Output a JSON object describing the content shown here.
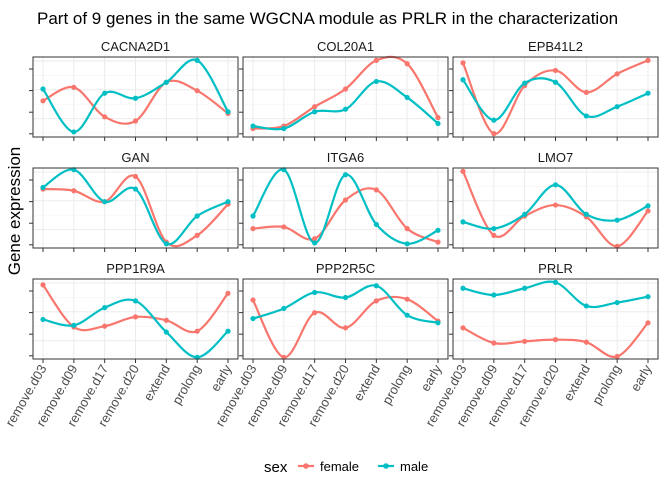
{
  "chart_data": {
    "type": "line",
    "title": "Part of 9 genes in the same WGCNA module as PRLR in the characterization",
    "xlabel": "",
    "ylabel": "Gene expression",
    "categories": [
      "remove.d03",
      "remove.d09",
      "remove.d17",
      "remove.d20",
      "extend",
      "prolong",
      "early"
    ],
    "legend": {
      "title": "sex",
      "position": "bottom"
    },
    "grid": true,
    "y_tick_labels": false,
    "series_colors": {
      "female": "#F8766D",
      "male": "#00BFC4"
    },
    "panels": [
      {
        "name": "CACNA2D1",
        "ylim": [
          0.05,
          1.0
        ],
        "series": [
          {
            "name": "female",
            "values": [
              0.48,
              0.64,
              0.29,
              0.24,
              0.7,
              0.6,
              0.33
            ]
          },
          {
            "name": "male",
            "values": [
              0.62,
              0.11,
              0.57,
              0.51,
              0.7,
              0.96,
              0.35
            ]
          }
        ]
      },
      {
        "name": "COL20A1",
        "ylim": [
          0.05,
          1.0
        ],
        "series": [
          {
            "name": "female",
            "values": [
              0.15,
              0.18,
              0.41,
              0.62,
              0.96,
              0.92,
              0.28
            ]
          },
          {
            "name": "male",
            "values": [
              0.18,
              0.15,
              0.35,
              0.38,
              0.71,
              0.52,
              0.21
            ]
          }
        ]
      },
      {
        "name": "EPB41L2",
        "ylim": [
          0.05,
          1.0
        ],
        "series": [
          {
            "name": "female",
            "values": [
              0.93,
              0.09,
              0.66,
              0.84,
              0.58,
              0.8,
              0.96
            ]
          },
          {
            "name": "male",
            "values": [
              0.73,
              0.25,
              0.69,
              0.7,
              0.3,
              0.41,
              0.57
            ]
          }
        ]
      },
      {
        "name": "GAN",
        "ylim": [
          0.05,
          1.0
        ],
        "series": [
          {
            "name": "female",
            "values": [
              0.75,
              0.73,
              0.6,
              0.9,
              0.12,
              0.2,
              0.57
            ]
          },
          {
            "name": "male",
            "values": [
              0.77,
              0.98,
              0.6,
              0.75,
              0.1,
              0.43,
              0.6
            ]
          }
        ]
      },
      {
        "name": "ITGA6",
        "ylim": [
          0.05,
          1.0
        ],
        "series": [
          {
            "name": "female",
            "values": [
              0.28,
              0.3,
              0.16,
              0.62,
              0.74,
              0.28,
              0.12
            ]
          },
          {
            "name": "male",
            "values": [
              0.43,
              0.98,
              0.11,
              0.92,
              0.33,
              0.1,
              0.26
            ]
          }
        ]
      },
      {
        "name": "LMO7",
        "ylim": [
          0.05,
          1.0
        ],
        "series": [
          {
            "name": "female",
            "values": [
              0.96,
              0.2,
              0.43,
              0.56,
              0.42,
              0.07,
              0.49
            ]
          },
          {
            "name": "male",
            "values": [
              0.36,
              0.28,
              0.45,
              0.8,
              0.45,
              0.38,
              0.55
            ]
          }
        ]
      },
      {
        "name": "PPP1R9A",
        "ylim": [
          0.05,
          1.0
        ],
        "series": [
          {
            "name": "female",
            "values": [
              0.93,
              0.43,
              0.44,
              0.55,
              0.51,
              0.38,
              0.83
            ]
          },
          {
            "name": "male",
            "values": [
              0.52,
              0.45,
              0.66,
              0.74,
              0.37,
              0.07,
              0.38
            ]
          }
        ]
      },
      {
        "name": "PPP2R5C",
        "ylim": [
          0.05,
          1.0
        ],
        "series": [
          {
            "name": "female",
            "values": [
              0.75,
              0.07,
              0.6,
              0.42,
              0.74,
              0.76,
              0.5
            ]
          },
          {
            "name": "male",
            "values": [
              0.53,
              0.65,
              0.84,
              0.78,
              0.92,
              0.57,
              0.48
            ]
          }
        ]
      },
      {
        "name": "PRLR",
        "ylim": [
          0.05,
          1.0
        ],
        "series": [
          {
            "name": "female",
            "values": [
              0.42,
              0.24,
              0.26,
              0.28,
              0.25,
              0.08,
              0.48
            ]
          },
          {
            "name": "male",
            "values": [
              0.89,
              0.81,
              0.89,
              0.96,
              0.68,
              0.72,
              0.79
            ]
          }
        ]
      }
    ]
  }
}
